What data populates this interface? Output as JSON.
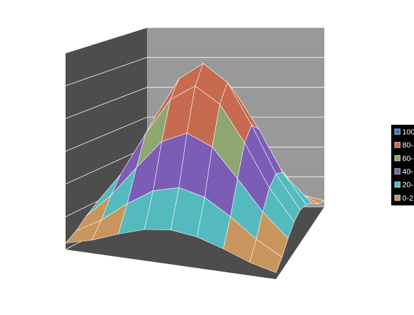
{
  "chart_data": {
    "type": "surface",
    "zlim": [
      0,
      120
    ],
    "zticks": [
      0,
      20,
      40,
      60,
      80,
      100,
      120
    ],
    "grid": true,
    "series": [
      {
        "name": "100",
        "color": "#2a7ccc"
      },
      {
        "name": "80-",
        "color": "#c66b50"
      },
      {
        "name": "60-",
        "color": "#8fa671"
      },
      {
        "name": "40-",
        "color": "#7b5db6"
      },
      {
        "name": "20-",
        "color": "#55babe"
      },
      {
        "name": "0-2",
        "color": "#c7955d"
      }
    ],
    "z": [
      [
        4,
        8,
        14,
        19,
        21,
        19,
        14,
        8,
        4
      ],
      [
        8,
        17,
        29,
        39,
        43,
        39,
        29,
        17,
        8
      ],
      [
        14,
        29,
        48,
        66,
        73,
        66,
        48,
        29,
        14
      ],
      [
        19,
        39,
        66,
        89,
        99,
        89,
        66,
        39,
        19
      ],
      [
        21,
        43,
        73,
        99,
        110,
        99,
        73,
        43,
        21
      ],
      [
        19,
        39,
        66,
        89,
        99,
        89,
        66,
        39,
        19
      ],
      [
        14,
        29,
        48,
        66,
        73,
        66,
        48,
        29,
        14
      ],
      [
        8,
        17,
        29,
        39,
        43,
        39,
        29,
        17,
        8
      ],
      [
        4,
        8,
        14,
        19,
        21,
        19,
        14,
        8,
        4
      ]
    ]
  }
}
